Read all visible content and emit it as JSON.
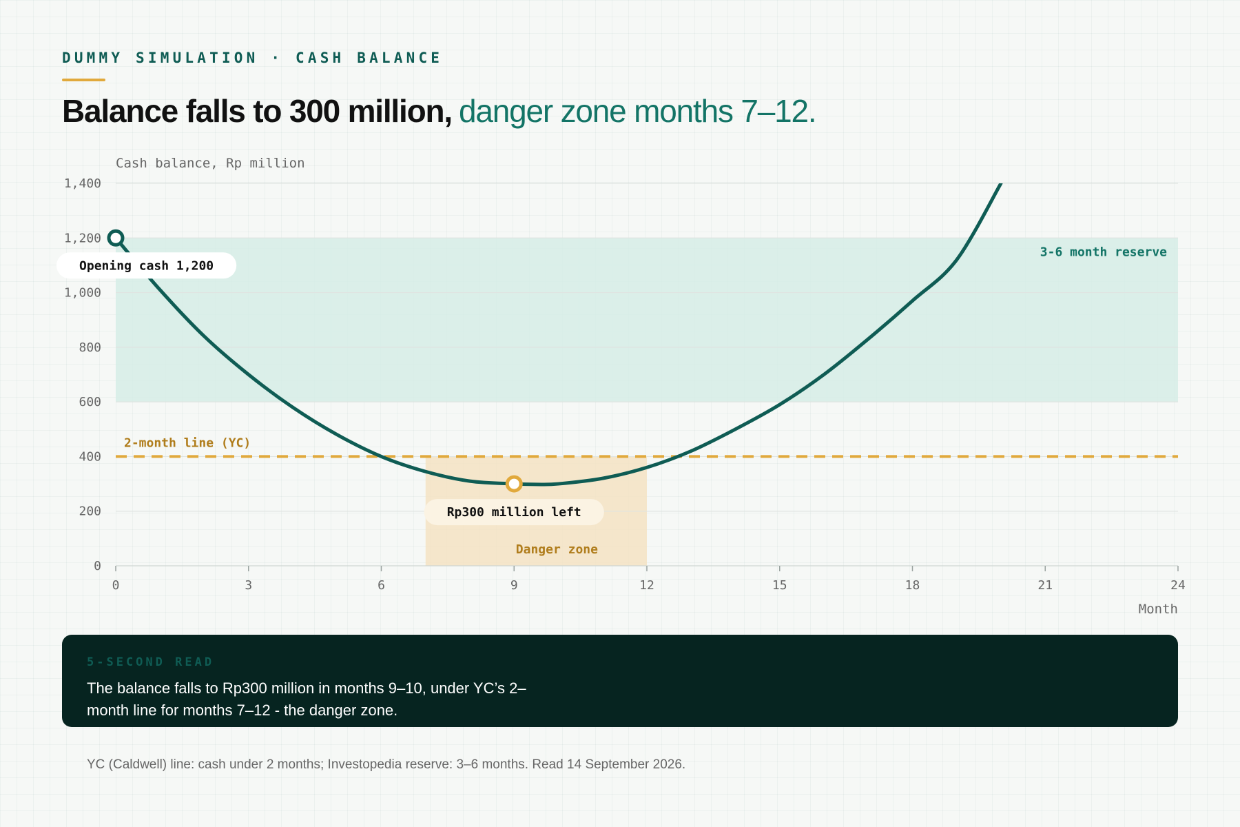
{
  "header": {
    "kicker": "DUMMY SIMULATION · CASH BALANCE",
    "headline_strong": "Balance falls to 300 million,",
    "headline_accent": "danger zone months 7–12."
  },
  "chart_data": {
    "type": "line",
    "ylabel": "Cash balance, Rp million",
    "xlabel": "Month",
    "xlim": [
      0,
      24
    ],
    "ylim": [
      0,
      1400
    ],
    "x_ticks": [
      0,
      3,
      6,
      9,
      12,
      15,
      18,
      21,
      24
    ],
    "y_ticks": [
      0,
      200,
      400,
      600,
      800,
      1000,
      1200,
      1400
    ],
    "y_tick_labels": [
      "0",
      "200",
      "400",
      "600",
      "800",
      "1,000",
      "1,200",
      "1,400"
    ],
    "grid": "horizontal",
    "series": [
      {
        "color": "#0f5c54",
        "x": [
          0,
          1,
          2,
          3,
          4,
          5,
          6,
          7,
          8,
          9,
          9.5,
          10,
          11,
          12,
          13,
          14,
          15,
          16,
          17,
          18,
          19,
          20
        ],
        "y": [
          1200,
          1010,
          840,
          700,
          580,
          480,
          400,
          345,
          310,
          300,
          298,
          300,
          320,
          360,
          420,
          500,
          590,
          700,
          830,
          970,
          1120,
          1400
        ]
      }
    ],
    "bands": [
      {
        "label": "3-6 month reserve",
        "y_range": [
          600,
          1200
        ],
        "color": "#d6ede6"
      },
      {
        "label": "Danger zone",
        "x_range": [
          7,
          12
        ],
        "y_range": [
          0,
          400
        ],
        "color": "#f4e3c3"
      }
    ],
    "reference_lines": [
      {
        "label": "2-month line (YC)",
        "y": 400,
        "color": "#e1a93c",
        "style": "dashed"
      }
    ],
    "annotations": [
      {
        "label": "Opening cash 1,200",
        "x": 0,
        "y": 1200,
        "marker_color": "#0f5c54"
      },
      {
        "label": "Rp300 million left",
        "x": 9,
        "y": 300,
        "marker_color": "#e1a93c"
      }
    ]
  },
  "summary": {
    "kicker": "5-SECOND READ",
    "text": "The balance falls to Rp300 million in months 9–10, under YC’s 2–month line for months 7–12 - the danger zone."
  },
  "footnote": "YC (Caldwell) line: cash under 2 months; Investopedia reserve: 3–6 months. Read 14 September 2026."
}
